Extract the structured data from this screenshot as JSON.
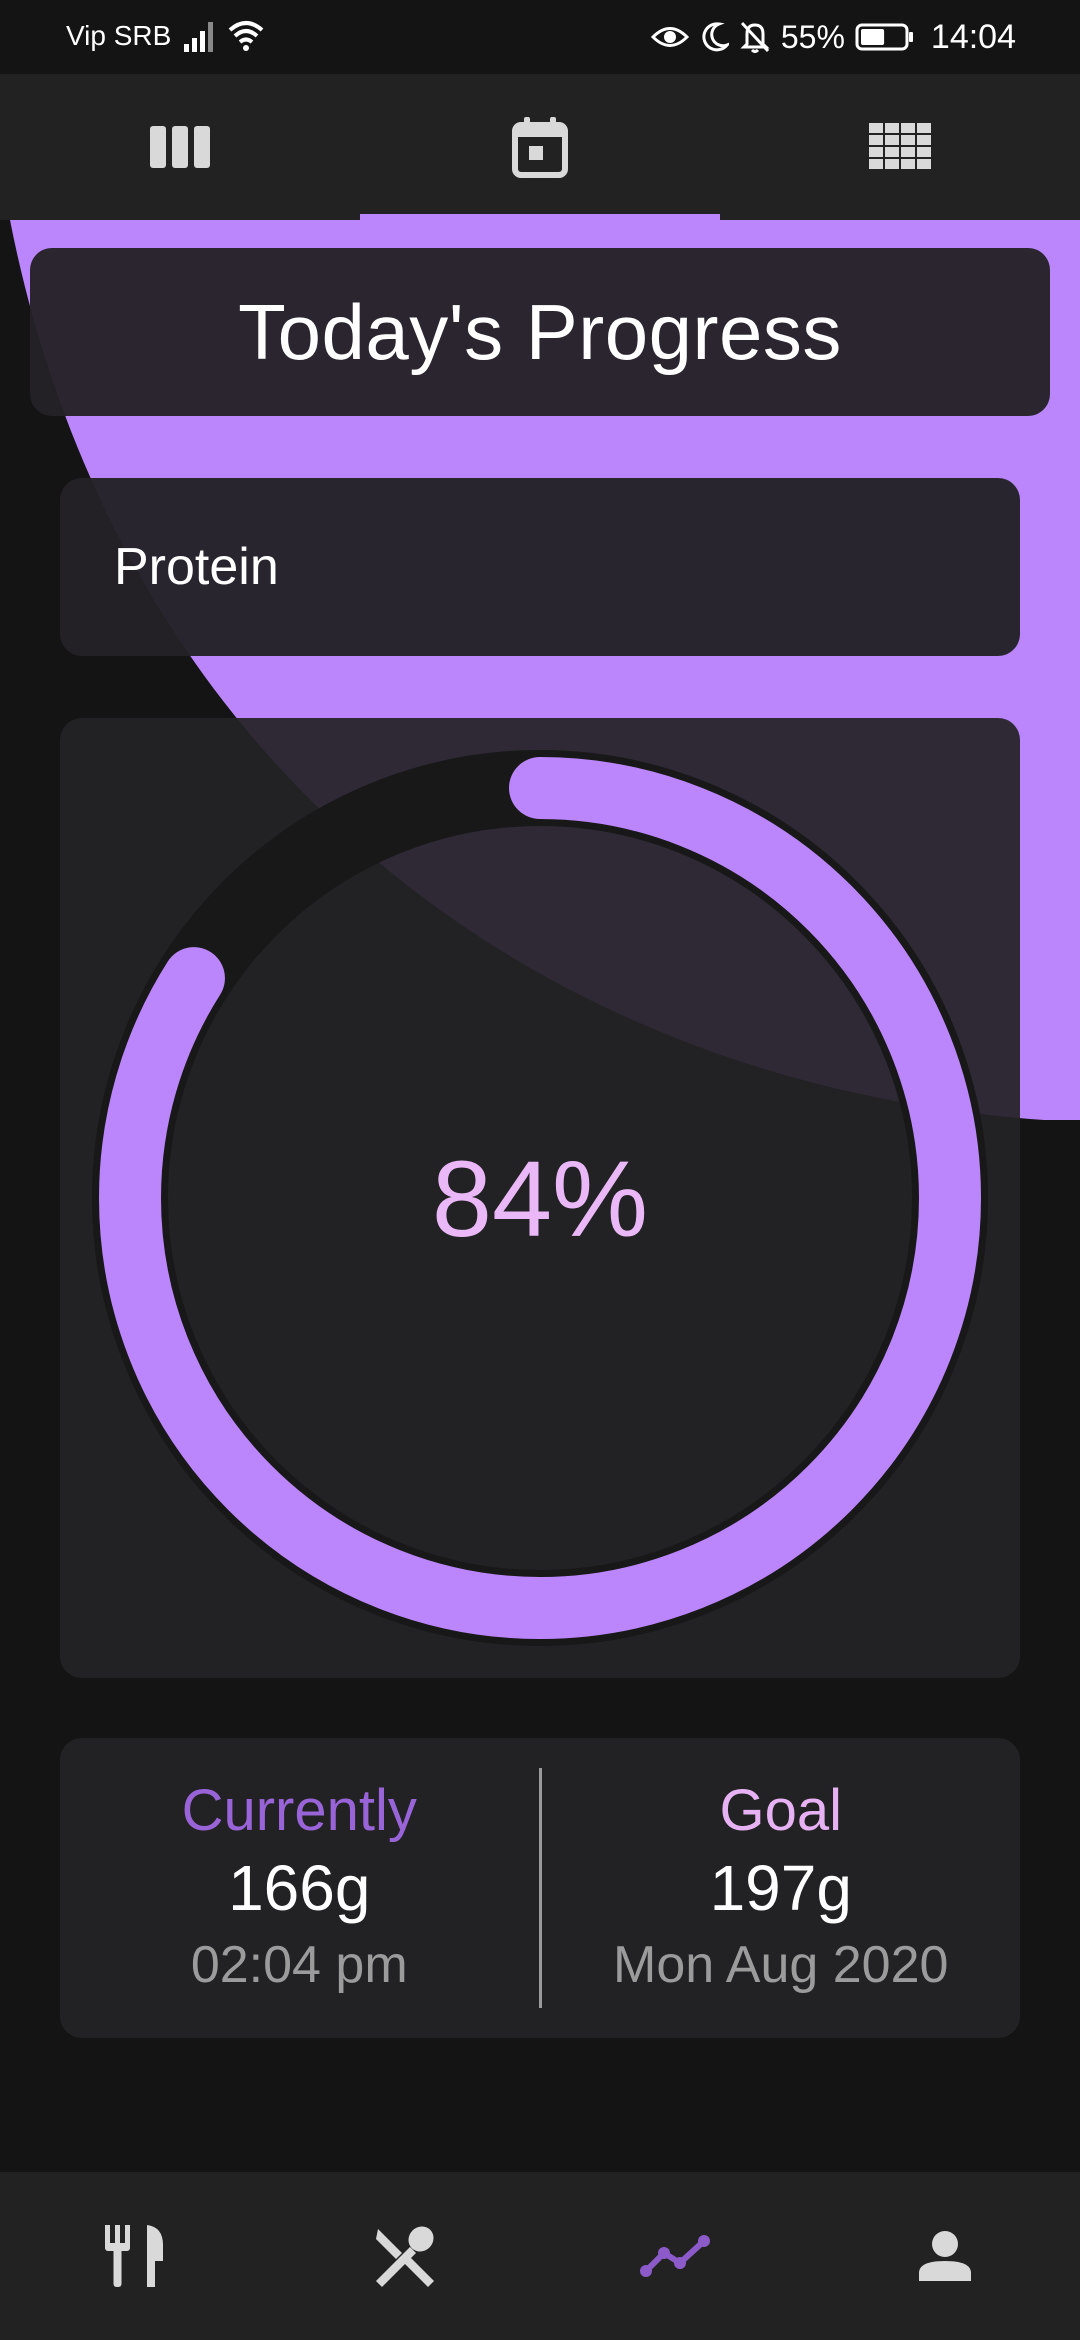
{
  "status_bar": {
    "carrier": "Vip SRB",
    "battery_percent": "55%",
    "battery_level": 0.55,
    "time": "14:04",
    "icons": [
      "signal-icon",
      "wifi-icon",
      "eye-icon",
      "moon-icon",
      "bell-off-icon",
      "battery-icon"
    ]
  },
  "top_tabs": [
    {
      "icon": "columns-icon",
      "active": false
    },
    {
      "icon": "calendar-icon",
      "active": true
    },
    {
      "icon": "grid-icon",
      "active": false
    }
  ],
  "header": {
    "title": "Today's Progress"
  },
  "nutrient": {
    "name": "Protein"
  },
  "progress": {
    "percent_label": "84%",
    "fraction": 0.84
  },
  "stats": {
    "current": {
      "label": "Currently",
      "value": "166g",
      "sub": "02:04 pm"
    },
    "goal": {
      "label": "Goal",
      "value": "197g",
      "sub": "Mon Aug 2020"
    }
  },
  "bottom_nav": [
    {
      "icon": "fork-knife-icon",
      "active": false
    },
    {
      "icon": "utensils-cross-icon",
      "active": false
    },
    {
      "icon": "trending-icon",
      "active": true
    },
    {
      "icon": "person-icon",
      "active": false
    }
  ],
  "colors": {
    "accent": "#bb86fc",
    "percent_text": "#ebb8f7",
    "current_label": "#9a64d9",
    "goal_label": "#e7b2f4",
    "background": "#141414",
    "surface": "#232223"
  }
}
